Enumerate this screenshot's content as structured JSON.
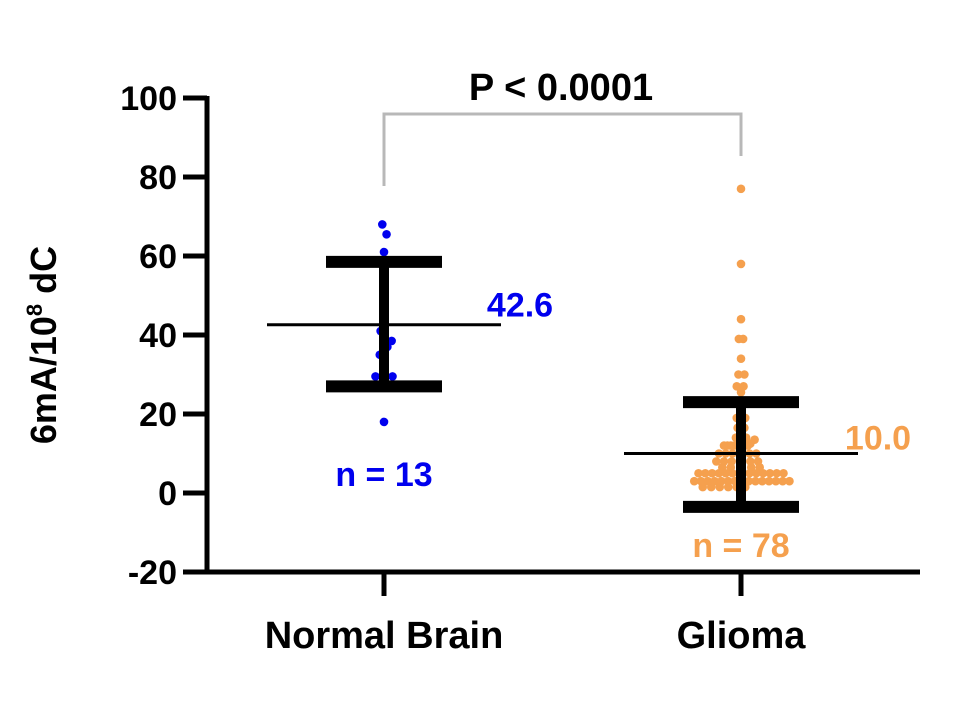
{
  "chart_data": {
    "type": "scatter",
    "ylabel": {
      "prefix": "6mA/10",
      "sup": "8",
      "suffix": " dC"
    },
    "ylim": [
      -20,
      100
    ],
    "yticks": [
      "100",
      "80",
      "60",
      "40",
      "20",
      "0",
      "-20"
    ],
    "ytick_values": [
      100,
      80,
      60,
      40,
      20,
      0,
      -20
    ],
    "categories": [
      "Normal Brain",
      "Glioma"
    ],
    "comparison": {
      "label": "P < 0.0001"
    },
    "series": [
      {
        "category": "Normal Brain",
        "color": "#0000ee",
        "mean": 42.6,
        "mean_label": "42.6",
        "sd_upper": 58.5,
        "sd_lower": 27.0,
        "n_label": "n = 13",
        "points": [
          {
            "dx": -0.2,
            "y": 68
          },
          {
            "dx": 0.3,
            "y": 65.5
          },
          {
            "dx": 0.0,
            "y": 61
          },
          {
            "dx": 0.0,
            "y": 54.5
          },
          {
            "dx": 0.0,
            "y": 47
          },
          {
            "dx": -0.4,
            "y": 41
          },
          {
            "dx": 0.9,
            "y": 38.5
          },
          {
            "dx": 0.4,
            "y": 37
          },
          {
            "dx": -0.5,
            "y": 35
          },
          {
            "dx": -1.0,
            "y": 29.5
          },
          {
            "dx": 0.0,
            "y": 30
          },
          {
            "dx": 1.0,
            "y": 29.5
          },
          {
            "dx": 0.0,
            "y": 18
          }
        ]
      },
      {
        "category": "Glioma",
        "color": "#f5a04e",
        "mean": 10.0,
        "mean_label": "10.0",
        "sd_upper": 23.0,
        "sd_lower": -3.5,
        "n_label": "n = 78",
        "points": [
          {
            "dx": 0.0,
            "y": 77
          },
          {
            "dx": 0.0,
            "y": 58
          },
          {
            "dx": 0.0,
            "y": 44
          },
          {
            "dx": -0.25,
            "y": 39
          },
          {
            "dx": 0.25,
            "y": 39
          },
          {
            "dx": 0.0,
            "y": 34
          },
          {
            "dx": -0.3,
            "y": 30
          },
          {
            "dx": 0.4,
            "y": 30
          },
          {
            "dx": -0.5,
            "y": 27
          },
          {
            "dx": 0.3,
            "y": 27
          },
          {
            "dx": 0.0,
            "y": 25.5
          },
          {
            "dx": 0.0,
            "y": 22
          },
          {
            "dx": -0.5,
            "y": 19
          },
          {
            "dx": 0.5,
            "y": 19
          },
          {
            "dx": -0.4,
            "y": 16.5
          },
          {
            "dx": 0.4,
            "y": 16.5
          },
          {
            "dx": -0.6,
            "y": 14
          },
          {
            "dx": 0.6,
            "y": 14
          },
          {
            "dx": 1.6,
            "y": 13.5
          },
          {
            "dx": 1.1,
            "y": 12.5
          },
          {
            "dx": -2.0,
            "y": 12
          },
          {
            "dx": -1.6,
            "y": 12
          },
          {
            "dx": -1.2,
            "y": 12
          },
          {
            "dx": -0.8,
            "y": 12
          },
          {
            "dx": 0.0,
            "y": 12
          },
          {
            "dx": 0.8,
            "y": 12
          },
          {
            "dx": -2.6,
            "y": 10
          },
          {
            "dx": -1.8,
            "y": 10
          },
          {
            "dx": -1.0,
            "y": 10
          },
          {
            "dx": 0.0,
            "y": 10
          },
          {
            "dx": 1.0,
            "y": 10
          },
          {
            "dx": 1.8,
            "y": 10
          },
          {
            "dx": -2.9,
            "y": 8
          },
          {
            "dx": -2.0,
            "y": 8
          },
          {
            "dx": -1.1,
            "y": 8
          },
          {
            "dx": 0.0,
            "y": 8
          },
          {
            "dx": 1.1,
            "y": 8
          },
          {
            "dx": 2.0,
            "y": 8
          },
          {
            "dx": -2.2,
            "y": 6.5
          },
          {
            "dx": -1.2,
            "y": 6.5
          },
          {
            "dx": 0.0,
            "y": 6.5
          },
          {
            "dx": 1.2,
            "y": 6.5
          },
          {
            "dx": 2.2,
            "y": 6.5
          },
          {
            "dx": -5.0,
            "y": 5
          },
          {
            "dx": -4.2,
            "y": 5
          },
          {
            "dx": -3.4,
            "y": 5
          },
          {
            "dx": -2.6,
            "y": 5
          },
          {
            "dx": -1.8,
            "y": 5
          },
          {
            "dx": -1.0,
            "y": 5
          },
          {
            "dx": 0.0,
            "y": 5
          },
          {
            "dx": 1.0,
            "y": 5
          },
          {
            "dx": 1.8,
            "y": 5
          },
          {
            "dx": 2.6,
            "y": 5
          },
          {
            "dx": 3.4,
            "y": 5
          },
          {
            "dx": 4.2,
            "y": 5
          },
          {
            "dx": 5.0,
            "y": 5
          },
          {
            "dx": -5.5,
            "y": 3
          },
          {
            "dx": -4.7,
            "y": 3
          },
          {
            "dx": -3.9,
            "y": 3
          },
          {
            "dx": -3.1,
            "y": 3
          },
          {
            "dx": -2.3,
            "y": 3
          },
          {
            "dx": -1.5,
            "y": 3
          },
          {
            "dx": -0.7,
            "y": 3
          },
          {
            "dx": 0.1,
            "y": 3
          },
          {
            "dx": 0.9,
            "y": 3
          },
          {
            "dx": 1.7,
            "y": 3
          },
          {
            "dx": 2.5,
            "y": 3
          },
          {
            "dx": 3.3,
            "y": 3
          },
          {
            "dx": 4.1,
            "y": 3
          },
          {
            "dx": 4.9,
            "y": 3
          },
          {
            "dx": 5.7,
            "y": 3
          },
          {
            "dx": -4.5,
            "y": 1.5
          },
          {
            "dx": -3.5,
            "y": 1.5
          },
          {
            "dx": -2.5,
            "y": 1.5
          },
          {
            "dx": -1.5,
            "y": 1.5
          },
          {
            "dx": -0.5,
            "y": 1.5
          },
          {
            "dx": 0.5,
            "y": 1.5
          },
          {
            "dx": 0.0,
            "y": 0
          }
        ]
      }
    ]
  }
}
